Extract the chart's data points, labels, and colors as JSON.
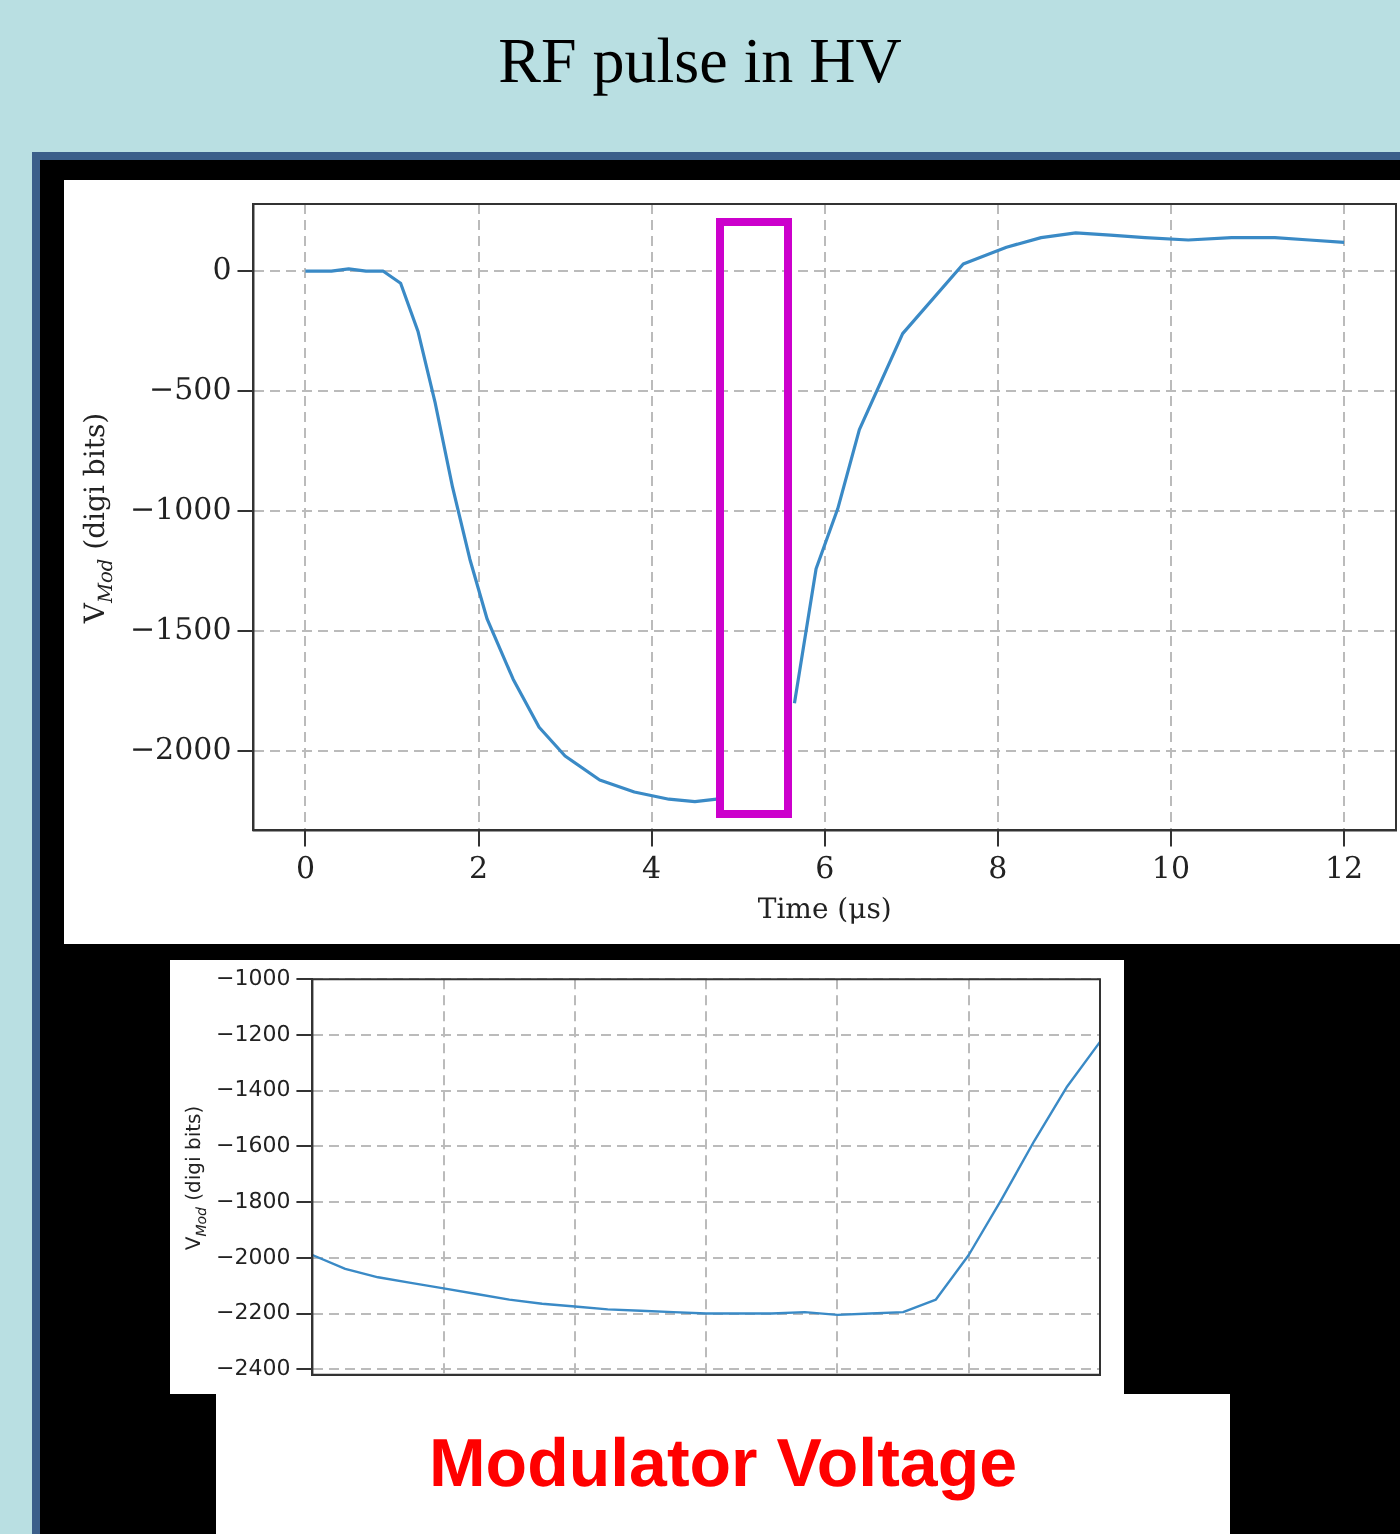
{
  "chart_data": [
    {
      "type": "line",
      "title": "RF pulse in HV",
      "xlabel": "Time (μs)",
      "ylabel": "V$_{Mod}$ (digi bits)",
      "x": [
        0,
        0.3,
        0.5,
        0.7,
        0.9,
        1.1,
        1.3,
        1.5,
        1.7,
        1.9,
        2.1,
        2.4,
        2.7,
        3.0,
        3.4,
        3.8,
        4.2,
        4.5,
        4.75,
        5.2,
        5.65,
        5.9,
        6.15,
        6.4,
        6.9,
        7.6,
        8.1,
        8.5,
        8.9,
        9.3,
        9.7,
        10.2,
        10.7,
        11.2,
        11.6,
        12
      ],
      "series": [
        {
          "color": "#3a8ac6",
          "values": [
            0,
            0,
            10,
            0,
            0,
            -50,
            -250,
            -550,
            -900,
            -1200,
            -1450,
            -1700,
            -1900,
            -2020,
            -2120,
            -2170,
            -2200,
            -2210,
            -2200,
            null,
            -1800,
            -1240,
            -990,
            -660,
            -260,
            30,
            100,
            140,
            160,
            150,
            140,
            130,
            140,
            140,
            130,
            120
          ]
        }
      ],
      "xlim": [
        -0.6,
        12.6
      ],
      "ylim": [
        -2330,
        280
      ],
      "xticks": [
        0,
        2,
        4,
        6,
        8,
        10,
        12
      ],
      "yticks": [
        {
          "value": 0,
          "label": "0"
        },
        {
          "value": -500,
          "label": "−500"
        },
        {
          "value": -1000,
          "label": "−1000"
        },
        {
          "value": -1500,
          "label": "−1500"
        },
        {
          "value": -2000,
          "label": "−2000"
        }
      ],
      "grid": true,
      "line_style": "solid"
    },
    {
      "type": "line",
      "ylabel": "V$_{Mod}$ (digi bits)",
      "annotations": [
        "Modulator Voltage"
      ],
      "categories": [
        null,
        null,
        null,
        null,
        null,
        null,
        null,
        null,
        null,
        null,
        null,
        null,
        null,
        null,
        null,
        null,
        null,
        null,
        null,
        null,
        null,
        null,
        null,
        null,
        null
      ],
      "series": [
        {
          "color": "#3a8ac6",
          "values": [
            -1990,
            -2040,
            -2070,
            -2090,
            -2110,
            -2130,
            -2150,
            -2165,
            -2175,
            -2185,
            -2190,
            -2195,
            -2200,
            -2200,
            -2200,
            -2195,
            -2205,
            -2200,
            -2195,
            -2150,
            -1990,
            -1790,
            -1580,
            -1385,
            -1225
          ]
        }
      ],
      "ylim": [
        -2420,
        -1000
      ],
      "yticks": [
        {
          "value": -1000,
          "label": "−1000"
        },
        {
          "value": -1200,
          "label": "−1200"
        },
        {
          "value": -1400,
          "label": "−1400"
        },
        {
          "value": -1600,
          "label": "−1600"
        },
        {
          "value": -1800,
          "label": "−1800"
        },
        {
          "value": -2000,
          "label": "−2000"
        },
        {
          "value": -2200,
          "label": "−2200"
        },
        {
          "value": -2400,
          "label": "−2400"
        }
      ],
      "grid": true,
      "tick_labels": "y",
      "line_style": "solid"
    }
  ]
}
